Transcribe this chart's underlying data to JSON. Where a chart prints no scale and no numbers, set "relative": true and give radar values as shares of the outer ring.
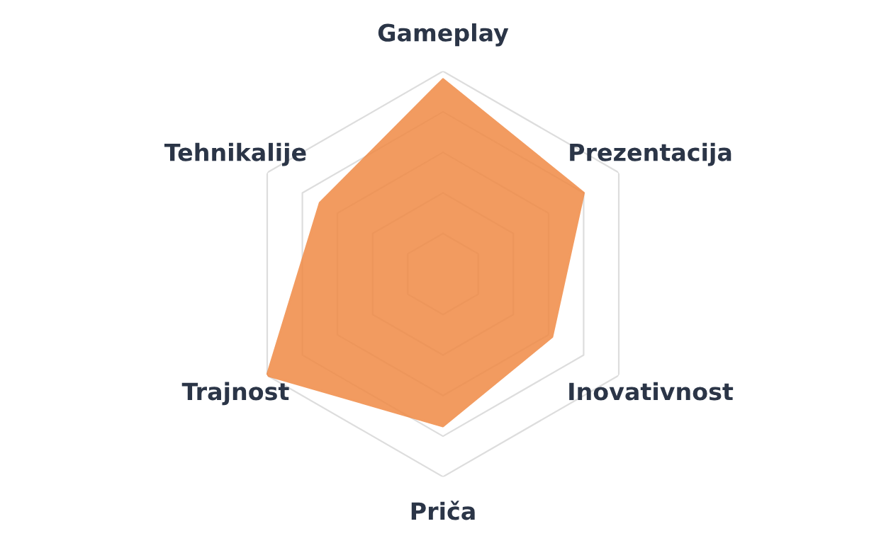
{
  "chart_data": {
    "type": "radar",
    "relative": true,
    "grid": true,
    "categories": [
      "Gameplay",
      "Prezentacija",
      "Inovativnost",
      "Priča",
      "Trajnost",
      "Tehnikalije"
    ],
    "series": [
      {
        "color": "#f08a45",
        "values": [
          0.96,
          0.8,
          0.62,
          0.75,
          1.0,
          0.7
        ]
      }
    ]
  }
}
